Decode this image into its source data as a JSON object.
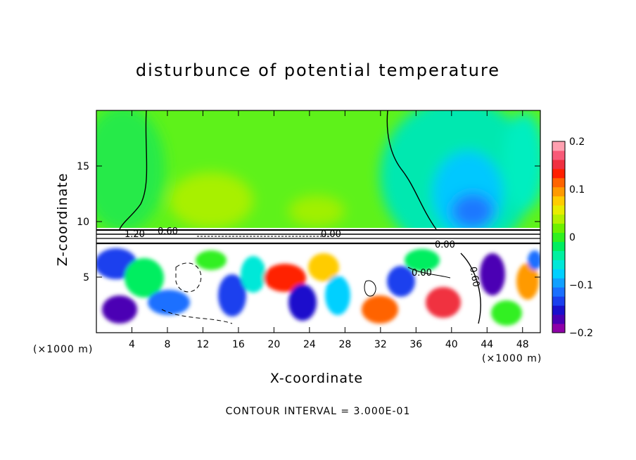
{
  "chart_data": {
    "type": "heatmap",
    "title": "disturbunce of potential temperature",
    "xlabel": "X-coordinate",
    "ylabel": "Z-coordinate",
    "x_unit": "(×1000 m)",
    "x_ticks": [
      4,
      8,
      12,
      16,
      20,
      24,
      28,
      32,
      36,
      40,
      44,
      48
    ],
    "y_ticks": [
      5,
      10,
      15
    ],
    "xlim": [
      0,
      50
    ],
    "ylim": [
      0,
      20
    ],
    "colorbar": {
      "range": [
        -0.2,
        0.2
      ],
      "tick_labels": [
        "0.2",
        "0.1",
        "0",
        "−0.1",
        "−0.2"
      ],
      "tick_values": [
        0.2,
        0.1,
        0,
        -0.1,
        -0.2
      ],
      "colors": [
        "#8e00a8",
        "#4b00b4",
        "#1a10cc",
        "#1a40ee",
        "#1a70ff",
        "#10a0ff",
        "#00d0ff",
        "#00e8d8",
        "#00f0a0",
        "#00ee60",
        "#30f020",
        "#6cf000",
        "#b4f000",
        "#e8ec00",
        "#ffcc00",
        "#ff9a00",
        "#ff6400",
        "#ff2000",
        "#f03040",
        "#f85a78",
        "#ffa0b0"
      ]
    },
    "contour_labels": [
      "1.20",
      "0.60",
      "0.00",
      "0.00",
      "0.00",
      "0.60"
    ],
    "annotation": "CONTOUR INTERVAL = 3.000E-01"
  }
}
